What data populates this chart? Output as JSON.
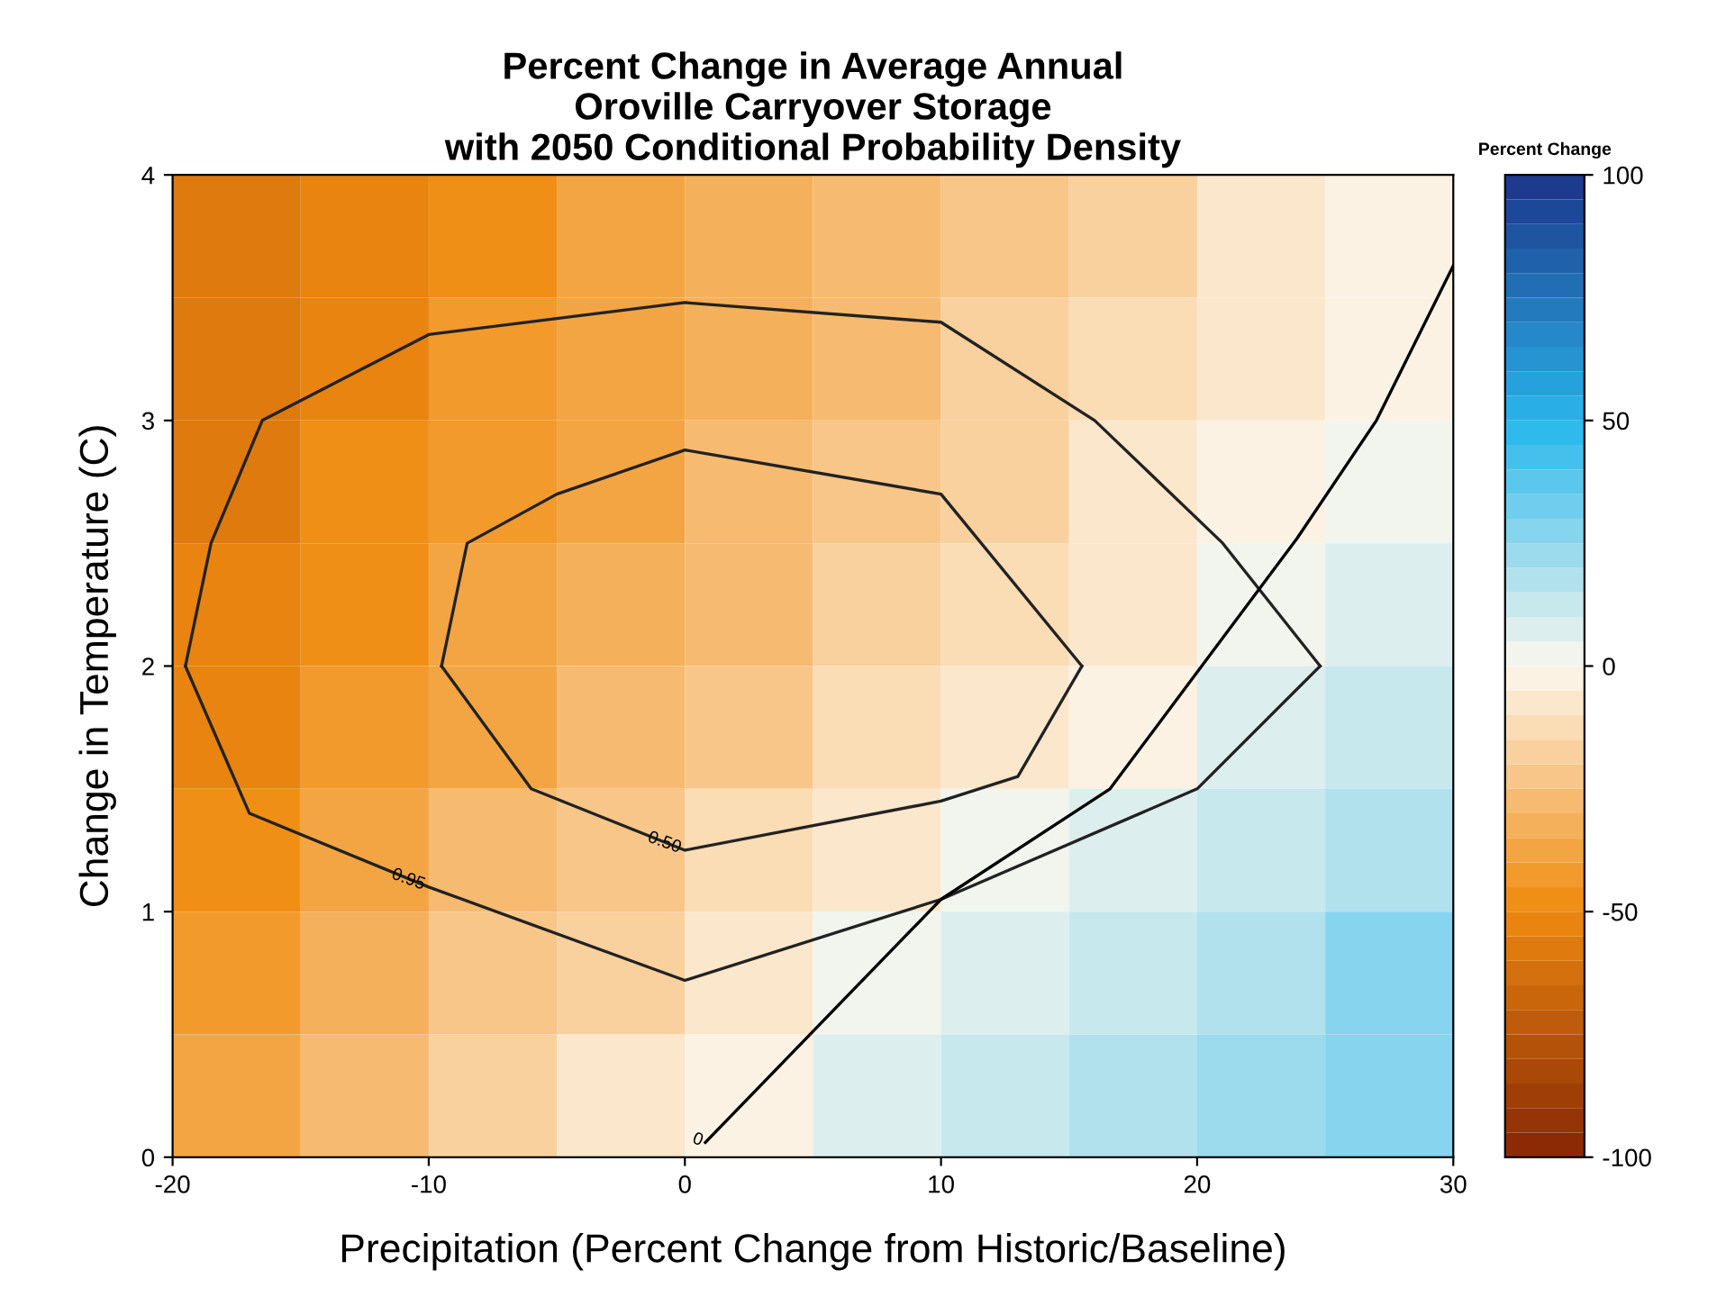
{
  "chart_data": {
    "type": "heatmap",
    "title": "Percent Change in Average Annual\nOroville Carryover Storage\nwith 2050 Conditional Probability Density",
    "xlabel": "Precipitation (Percent Change from Historic/Baseline)",
    "ylabel": "Change in Temperature (C)",
    "clabel": "Percent Change",
    "x": [
      -17.5,
      -12.5,
      -7.5,
      -2.5,
      2.5,
      7.5,
      12.5,
      17.5,
      22.5,
      27.5
    ],
    "y": [
      3.75,
      3.25,
      2.75,
      2.25,
      1.75,
      1.25,
      0.75,
      0.25
    ],
    "cells": [
      [
        -58,
        -52,
        -46,
        -40,
        -34,
        -28,
        -22,
        -16,
        -10,
        -4
      ],
      [
        -57,
        -51,
        -44,
        -38,
        -32,
        -26,
        -19,
        -13,
        -7,
        -1
      ],
      [
        -56,
        -49,
        -43,
        -36,
        -30,
        -23,
        -17,
        -10,
        -4,
        2
      ],
      [
        -53,
        -47,
        -40,
        -33,
        -26,
        -20,
        -13,
        -6,
        1,
        6
      ],
      [
        -51,
        -44,
        -37,
        -30,
        -22,
        -15,
        -8,
        -1,
        5,
        10
      ],
      [
        -46,
        -38,
        -30,
        -22,
        -15,
        -7,
        1,
        6,
        11,
        16
      ],
      [
        -42,
        -33,
        -25,
        -16,
        -8,
        1,
        7,
        13,
        19,
        25
      ],
      [
        -39,
        -29,
        -20,
        -10,
        -1,
        5,
        11,
        17,
        23,
        29
      ]
    ],
    "colors": [
      "#8b2a05",
      "#f08c10",
      "#fdf8ee",
      "#2ab8ec",
      "#1c3a8e"
    ],
    "clim": [
      -100,
      100
    ],
    "cticks": [
      -100,
      -50,
      0,
      50,
      100
    ],
    "xlim": [
      -20,
      30
    ],
    "xticks": [
      -20,
      -10,
      0,
      10,
      20,
      30
    ],
    "ylim": [
      0,
      4
    ],
    "yticks": [
      0,
      1,
      2,
      3,
      4
    ],
    "series": [
      {
        "type": "line",
        "color": "#222222",
        "x": [
          -19.5,
          -18.5,
          -16.5,
          -10,
          0,
          10,
          16,
          21,
          24.8
        ],
        "values": [
          2.0,
          2.5,
          3.0,
          3.35,
          3.48,
          3.4,
          3.0,
          2.5,
          2.0
        ]
      },
      {
        "type": "line",
        "color": "#222222",
        "x": [
          -19.5,
          -17,
          -10,
          0,
          10,
          20,
          24.8
        ],
        "values": [
          2.0,
          1.4,
          1.1,
          0.72,
          1.05,
          1.5,
          2.0
        ]
      },
      {
        "type": "line",
        "color": "#222222",
        "x": [
          -9.5,
          -8.5,
          -5,
          0,
          10,
          15.5
        ],
        "values": [
          2.0,
          2.5,
          2.7,
          2.88,
          2.7,
          2.0
        ]
      },
      {
        "type": "line",
        "color": "#222222",
        "x": [
          -9.5,
          -6,
          0,
          10,
          13,
          15.5
        ],
        "values": [
          2.0,
          1.5,
          1.25,
          1.45,
          1.55,
          2.0
        ]
      },
      {
        "type": "line",
        "color": "#000000",
        "x": [
          0.8,
          10,
          16.6,
          23.9,
          27,
          30
        ],
        "values": [
          0.06,
          1.05,
          1.5,
          2.52,
          3.0,
          3.63
        ]
      }
    ],
    "annotations": [
      {
        "text": "0.95",
        "x": -10.8,
        "y": 1.13
      },
      {
        "text": "0.50",
        "x": -0.8,
        "y": 1.28
      },
      {
        "text": "0",
        "x": 0.5,
        "y": 0.07
      }
    ],
    "grid": false,
    "legend": false
  }
}
